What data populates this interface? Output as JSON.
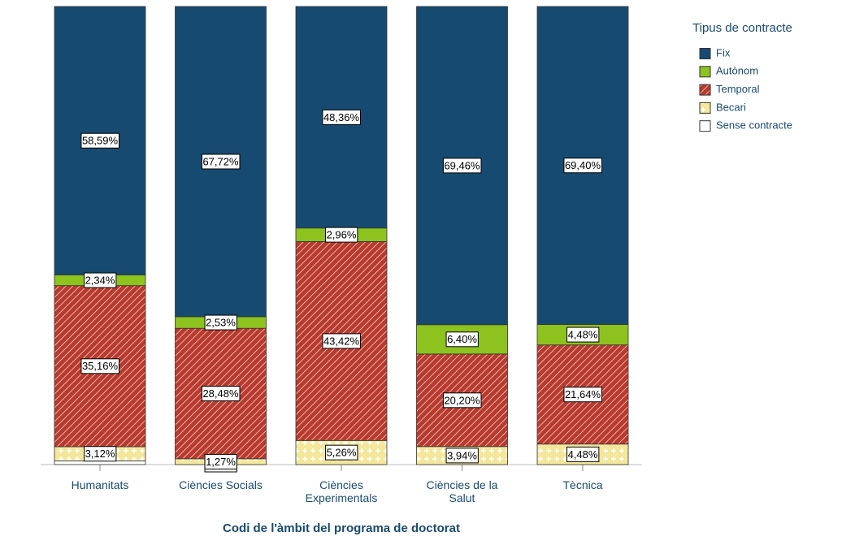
{
  "chart_data": {
    "type": "stacked_bar",
    "x_label": "Codi de l'àmbit del programa de doctorat",
    "legend_title": "Tipus de contracte",
    "legend": "right",
    "categories": [
      "Humanitats",
      "Ciències Socials",
      "Ciències\nExperimentals",
      "Ciències de la\nSalut",
      "Tècnica"
    ],
    "ylim": [
      0,
      100
    ],
    "series": [
      {
        "name": "Sense contracte",
        "color": "#ffffff",
        "values": [
          0.79,
          0,
          0,
          0,
          0
        ],
        "value_labels": [
          null,
          "0,00%",
          null,
          null,
          null
        ]
      },
      {
        "name": "Becari",
        "color": "#f3e79b",
        "pattern": "dots",
        "values": [
          3.12,
          1.27,
          5.26,
          3.94,
          4.48
        ],
        "value_labels": [
          "3,12%",
          "1,27%",
          "5,26%",
          "3,94%",
          "4,48%"
        ]
      },
      {
        "name": "Temporal",
        "color": "#b83a2e",
        "pattern": "diagonal",
        "values": [
          35.16,
          28.48,
          43.42,
          20.2,
          21.64
        ],
        "value_labels": [
          "35,16%",
          "28,48%",
          "43,42%",
          "20,20%",
          "21,64%"
        ]
      },
      {
        "name": "Autònom",
        "color": "#8dc21f",
        "values": [
          2.34,
          2.53,
          2.96,
          6.4,
          4.48
        ],
        "value_labels": [
          "2,34%",
          "2,53%",
          "2,96%",
          "6,40%",
          "4,48%"
        ]
      },
      {
        "name": "Fix",
        "color": "#174a70",
        "values": [
          58.59,
          67.72,
          48.36,
          69.46,
          69.4
        ],
        "value_labels": [
          "58,59%",
          "67,72%",
          "48,36%",
          "69,46%",
          "69,40%"
        ]
      }
    ]
  }
}
